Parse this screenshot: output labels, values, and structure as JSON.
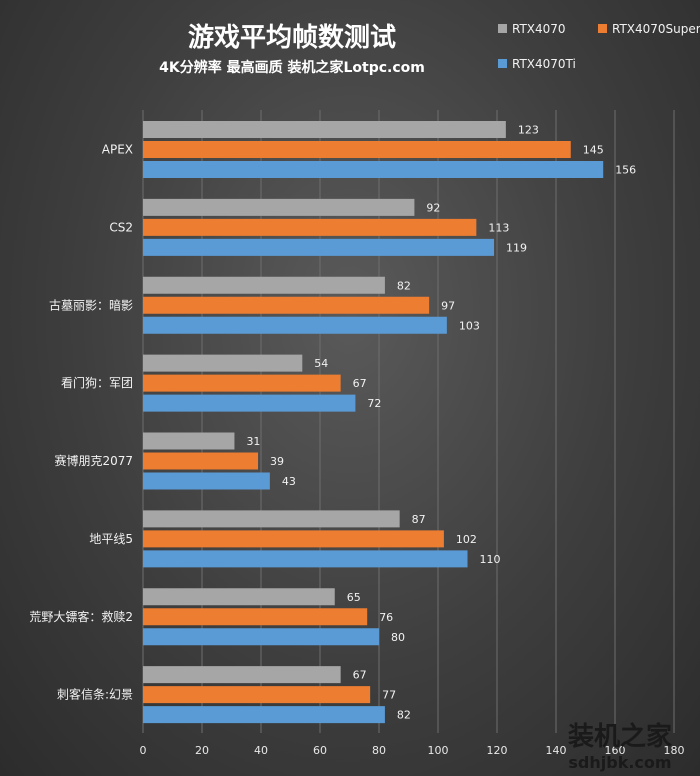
{
  "chart_data": {
    "type": "bar",
    "orientation": "horizontal",
    "title": "游戏平均帧数测试",
    "subtitle": "4K分辨率 最高画质 装机之家Lotpc.com",
    "categories": [
      "APEX",
      "CS2",
      "古墓丽影：暗影",
      "看门狗：军团",
      "赛博朋克2077",
      "地平线5",
      "荒野大镖客：救赎2",
      "刺客信条:幻景"
    ],
    "series": [
      {
        "name": "RTX4070",
        "color": "#a6a6a6",
        "values": [
          123,
          92,
          82,
          54,
          31,
          87,
          65,
          67
        ]
      },
      {
        "name": "RTX4070Super",
        "color": "#ed7d31",
        "values": [
          145,
          113,
          97,
          67,
          39,
          102,
          76,
          77
        ]
      },
      {
        "name": "RTX4070Ti",
        "color": "#5b9bd5",
        "values": [
          156,
          119,
          103,
          72,
          43,
          110,
          80,
          82
        ]
      }
    ],
    "xlim": [
      0,
      180
    ],
    "xticks": [
      0,
      20,
      40,
      60,
      80,
      100,
      120,
      140,
      160,
      180
    ],
    "grid": true,
    "legend_position": "top-right"
  },
  "watermark": {
    "line1": "装机之家",
    "line2": "sdhjbk.com"
  }
}
